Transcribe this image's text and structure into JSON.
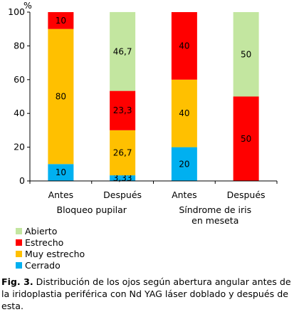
{
  "chart_data": {
    "type": "bar",
    "stacked": true,
    "unit_label": "%",
    "y_ticks": [
      0,
      20,
      40,
      60,
      80,
      100
    ],
    "ylim": [
      0,
      100
    ],
    "categories": [
      "Antes",
      "Después",
      "Antes",
      "Después"
    ],
    "groups": [
      {
        "label": "Bloqueo pupilar",
        "categories": [
          0,
          1
        ]
      },
      {
        "label_lines": [
          "Síndrome de iris",
          "en meseta"
        ],
        "categories": [
          2,
          3
        ]
      }
    ],
    "series": [
      {
        "name": "Cerrado",
        "color": "#00b0f0",
        "values": [
          10,
          3.33,
          20,
          0
        ],
        "labels": [
          "10",
          "3,33",
          "20",
          ""
        ]
      },
      {
        "name": "Muy estrecho",
        "color": "#ffc000",
        "values": [
          80,
          26.7,
          40,
          0
        ],
        "labels": [
          "80",
          "26,7",
          "40",
          ""
        ]
      },
      {
        "name": "Estrecho",
        "color": "#ff0000",
        "values": [
          10,
          23.3,
          40,
          50
        ],
        "labels": [
          "10",
          "23,3",
          "40",
          "50"
        ]
      },
      {
        "name": "Abierto",
        "color": "#c3e6a0",
        "values": [
          0,
          46.7,
          0,
          50
        ],
        "labels": [
          "",
          "46,7",
          "",
          "50"
        ]
      }
    ],
    "legend_order": [
      "Abierto",
      "Estrecho",
      "Muy estrecho",
      "Cerrado"
    ],
    "legend_position": "bottom-left"
  },
  "caption": {
    "label": "Fig. 3.",
    "text": " Distribución de los ojos según abertura angular antes de la iridoplastia periférica con Nd YAG láser doblado y después de esta."
  }
}
